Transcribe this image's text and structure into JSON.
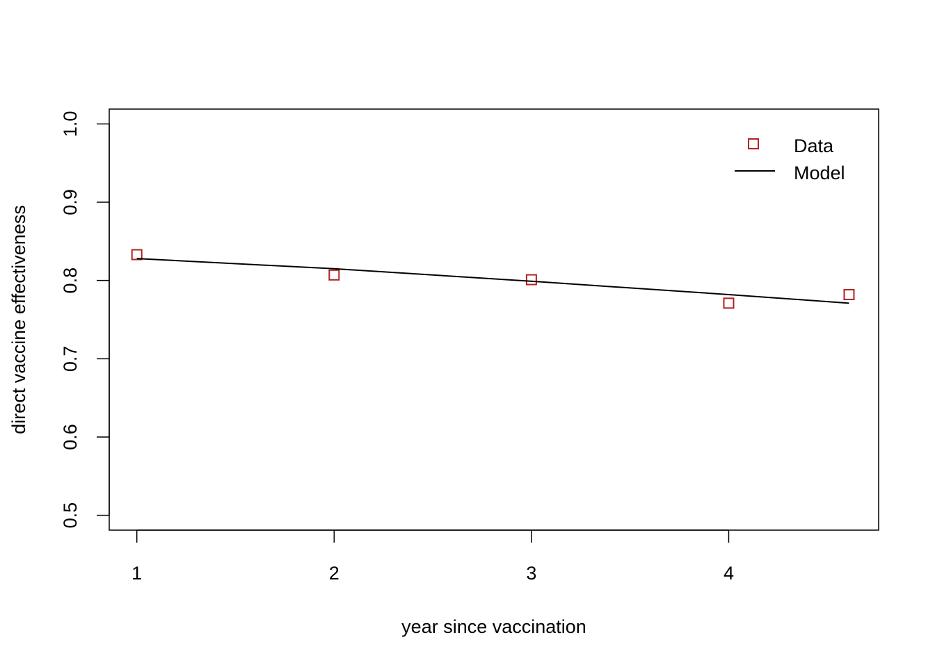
{
  "chart_data": {
    "type": "scatter",
    "title": "",
    "xlabel": "year since vaccination",
    "ylabel": "direct vaccine effectiveness",
    "xlim": [
      0.86,
      4.76
    ],
    "ylim": [
      0.481,
      1.019
    ],
    "xticks": [
      1,
      2,
      3,
      4
    ],
    "yticks": [
      0.5,
      0.6,
      0.7,
      0.8,
      0.9,
      1.0
    ],
    "ytick_labels": [
      "0.5",
      "0.6",
      "0.7",
      "0.8",
      "0.9",
      "1.0"
    ],
    "grid": false,
    "legend_position": "top-right",
    "series": [
      {
        "name": "Data",
        "kind": "points",
        "marker": "open-square",
        "color": "#b22222",
        "x": [
          1,
          2,
          3,
          4,
          4.61
        ],
        "y": [
          0.833,
          0.807,
          0.801,
          0.771,
          0.782
        ]
      },
      {
        "name": "Model",
        "kind": "line",
        "color": "#000000",
        "x": [
          1,
          2,
          3,
          4,
          4.61
        ],
        "y": [
          0.828,
          0.815,
          0.799,
          0.782,
          0.771
        ]
      }
    ]
  }
}
